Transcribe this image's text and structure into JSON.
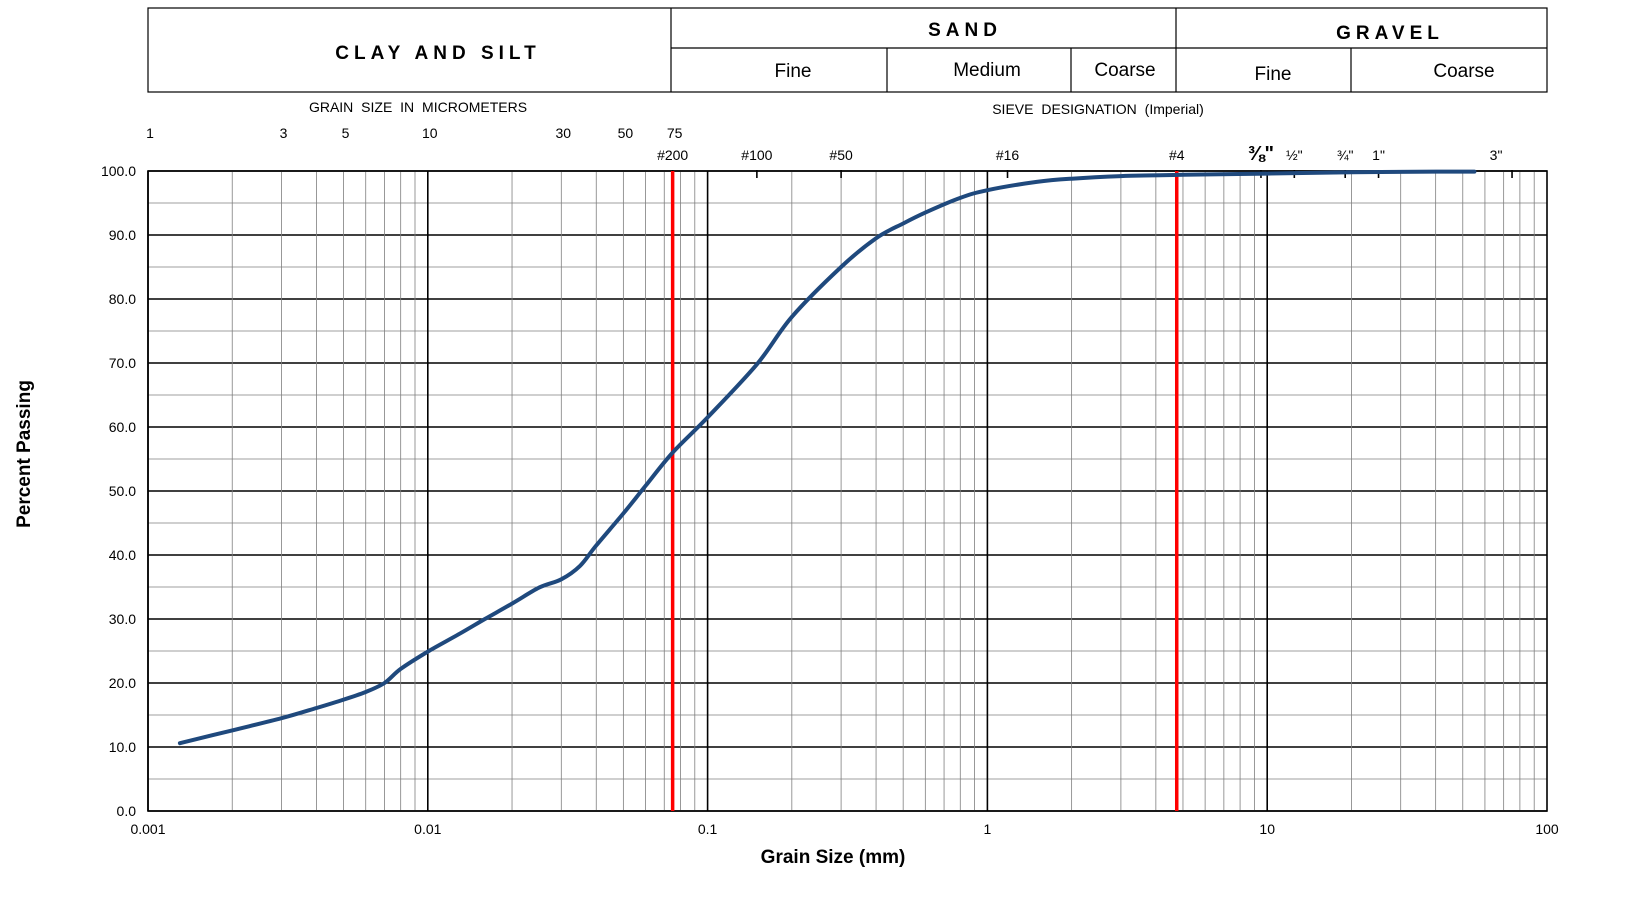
{
  "header": {
    "clay_silt": "CLAY AND SILT",
    "sand": "SAND",
    "gravel": "GRAVEL",
    "sand_fine": "Fine",
    "sand_medium": "Medium",
    "sand_coarse": "Coarse",
    "gravel_fine": "Fine",
    "gravel_coarse": "Coarse"
  },
  "top_axes": {
    "micrometers_title": "GRAIN SIZE IN MICROMETERS",
    "micrometer_ticks": [
      {
        "label": "1",
        "mm": 0.001
      },
      {
        "label": "3",
        "mm": 0.003
      },
      {
        "label": "5",
        "mm": 0.005
      },
      {
        "label": "10",
        "mm": 0.01
      },
      {
        "label": "30",
        "mm": 0.03
      },
      {
        "label": "50",
        "mm": 0.05
      },
      {
        "label": "75",
        "mm": 0.075
      }
    ],
    "sieve_title": "SIEVE DESIGNATION (Imperial)",
    "sieve_ticks": [
      {
        "label": "#200",
        "mm": 0.075
      },
      {
        "label": "#100",
        "mm": 0.15
      },
      {
        "label": "#50",
        "mm": 0.3
      },
      {
        "label": "#16",
        "mm": 1.18
      },
      {
        "label": "#4",
        "mm": 4.75
      },
      {
        "label": "⅜\"",
        "mm": 9.5
      },
      {
        "label": "½\"",
        "mm": 12.5
      },
      {
        "label": "¾\"",
        "mm": 19
      },
      {
        "label": "1\"",
        "mm": 25
      },
      {
        "label": "3\"",
        "mm": 75
      }
    ]
  },
  "chart_data": {
    "type": "line",
    "xlabel": "Grain Size (mm)",
    "ylabel": "Percent Passing",
    "x_scale": "log",
    "xlim": [
      0.001,
      100
    ],
    "ylim": [
      0,
      100
    ],
    "y_tick_step": 10,
    "x_tick_labels": [
      "0.001",
      "0.01",
      "0.1",
      "1",
      "10",
      "100"
    ],
    "y_tick_labels": [
      "0.0",
      "10.0",
      "20.0",
      "30.0",
      "40.0",
      "50.0",
      "60.0",
      "70.0",
      "80.0",
      "90.0",
      "100.0"
    ],
    "grid": true,
    "boundary_lines_mm": [
      0.075,
      4.75
    ],
    "boundary_color": "#ff0000",
    "series": [
      {
        "color": "#1f497d",
        "x": [
          0.0013,
          0.002,
          0.003,
          0.004,
          0.005,
          0.006,
          0.007,
          0.008,
          0.01,
          0.013,
          0.016,
          0.02,
          0.025,
          0.03,
          0.035,
          0.04,
          0.05,
          0.06,
          0.075,
          0.1,
          0.15,
          0.2,
          0.3,
          0.4,
          0.5,
          0.6,
          0.8,
          1.0,
          1.5,
          2.0,
          3.0,
          5.0,
          10.0,
          20.0,
          40.0,
          55.0
        ],
        "y": [
          10.6,
          12.6,
          14.5,
          16.1,
          17.4,
          18.6,
          20.0,
          22.2,
          24.9,
          27.7,
          30.0,
          32.4,
          34.9,
          36.2,
          38.3,
          41.5,
          46.5,
          50.8,
          56.0,
          61.5,
          69.8,
          77.2,
          85.0,
          89.5,
          91.8,
          93.5,
          95.8,
          97.0,
          98.3,
          98.8,
          99.2,
          99.4,
          99.6,
          99.8,
          99.9,
          99.9
        ]
      }
    ]
  }
}
